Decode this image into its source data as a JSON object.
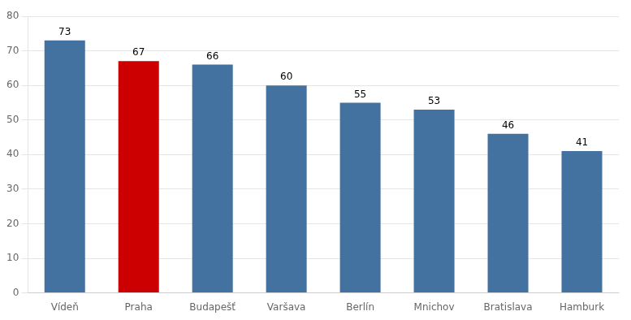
{
  "chart_data": {
    "type": "bar",
    "categories": [
      "Vídeň",
      "Praha",
      "Budapešť",
      "Varšava",
      "Berlín",
      "Mnichov",
      "Bratislava",
      "Hamburk"
    ],
    "values": [
      73,
      67,
      66,
      60,
      55,
      53,
      46,
      41
    ],
    "colors": [
      "#4472a0",
      "#cc0000",
      "#4472a0",
      "#4472a0",
      "#4472a0",
      "#4472a0",
      "#4472a0",
      "#4472a0"
    ],
    "ylim": [
      0,
      80
    ],
    "yticks": [
      0,
      10,
      20,
      30,
      40,
      50,
      60,
      70,
      80
    ],
    "grid": true,
    "data_labels": true
  }
}
